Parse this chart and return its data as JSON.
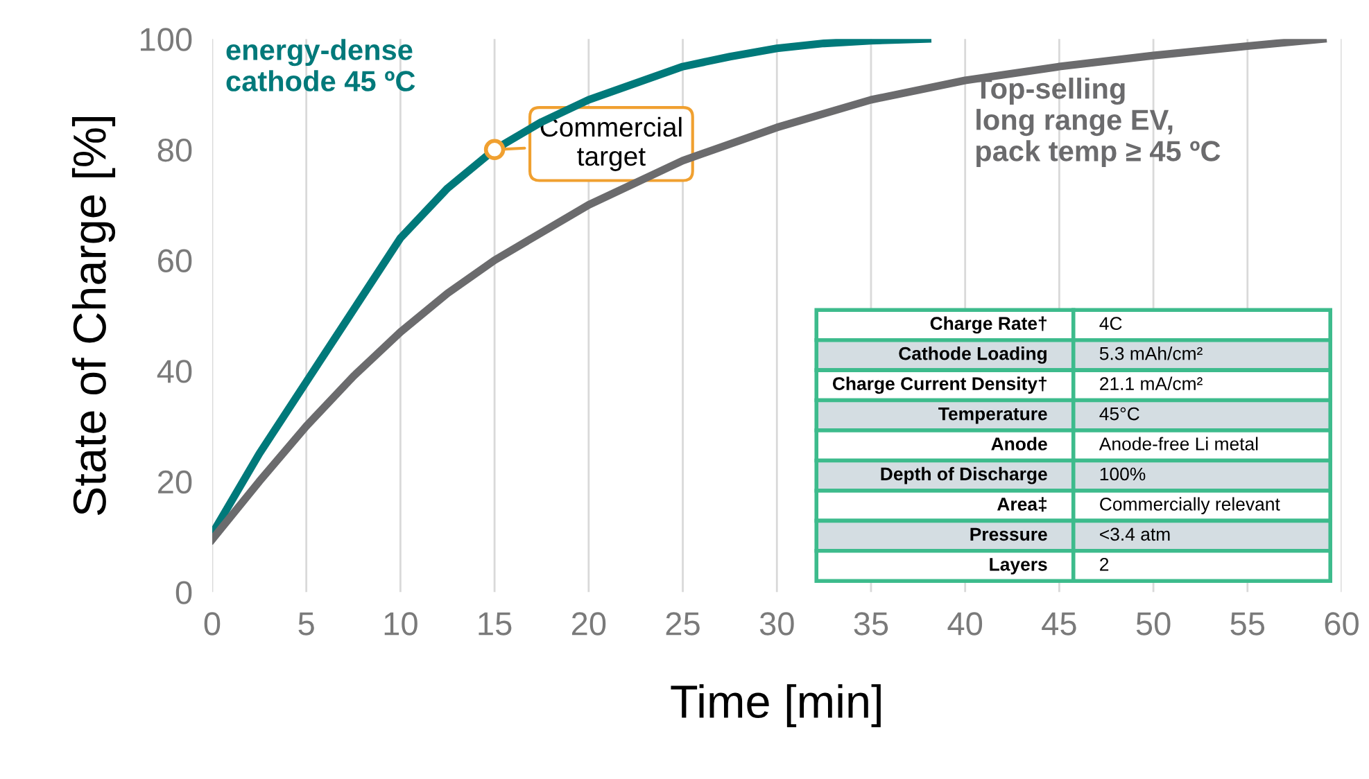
{
  "chart_data": {
    "type": "line",
    "xlabel": "Time [min]",
    "ylabel": "State of Charge [%]",
    "xlim": [
      0,
      60
    ],
    "xticks": [
      0,
      5,
      10,
      15,
      20,
      25,
      30,
      35,
      40,
      45,
      50,
      55,
      60
    ],
    "ylim": [
      0,
      100
    ],
    "yticks": [
      0,
      20,
      40,
      60,
      80,
      100
    ],
    "grid": "x",
    "legend": false,
    "marker": "none",
    "line_style": "solid",
    "series": [
      {
        "name": "energy-dense\ncathode 45 ºC",
        "color": "#00797a",
        "x": [
          0,
          2.5,
          5,
          7.5,
          10,
          12.5,
          15,
          17.5,
          20,
          22.5,
          25,
          27.5,
          30,
          32.5,
          35,
          38
        ],
        "values": [
          10.5,
          25,
          38,
          51,
          64,
          73,
          80,
          85,
          89,
          92,
          95,
          96.8,
          98.3,
          99.2,
          99.7,
          100
        ]
      },
      {
        "name": "Top-selling\nlong range EV,\npack temp ≥ 45 ºC",
        "color": "#6b6b6d",
        "x": [
          0,
          2.5,
          5,
          7.5,
          10,
          12.5,
          15,
          20,
          25,
          30,
          35,
          40,
          45,
          50,
          55,
          59
        ],
        "values": [
          9.5,
          20,
          30,
          39,
          47,
          54,
          60,
          70,
          78,
          84,
          89,
          92.5,
          95,
          97,
          98.7,
          100
        ]
      }
    ],
    "annotations": [
      {
        "text": "Commercial\ntarget",
        "x": 15,
        "y": 80
      },
      "Charge Rate†",
      "4C",
      "Cathode Loading",
      "5.3 mAh/cm²",
      "Charge Current Density†",
      "21.1 mA/cm²",
      "Temperature",
      "45°C",
      "Anode",
      "Anode-free Li metal",
      "Depth of Discharge",
      "100%",
      "Area‡",
      "Commercially relevant",
      "Pressure",
      "<3.4 atm",
      "Layers",
      "2"
    ]
  }
}
